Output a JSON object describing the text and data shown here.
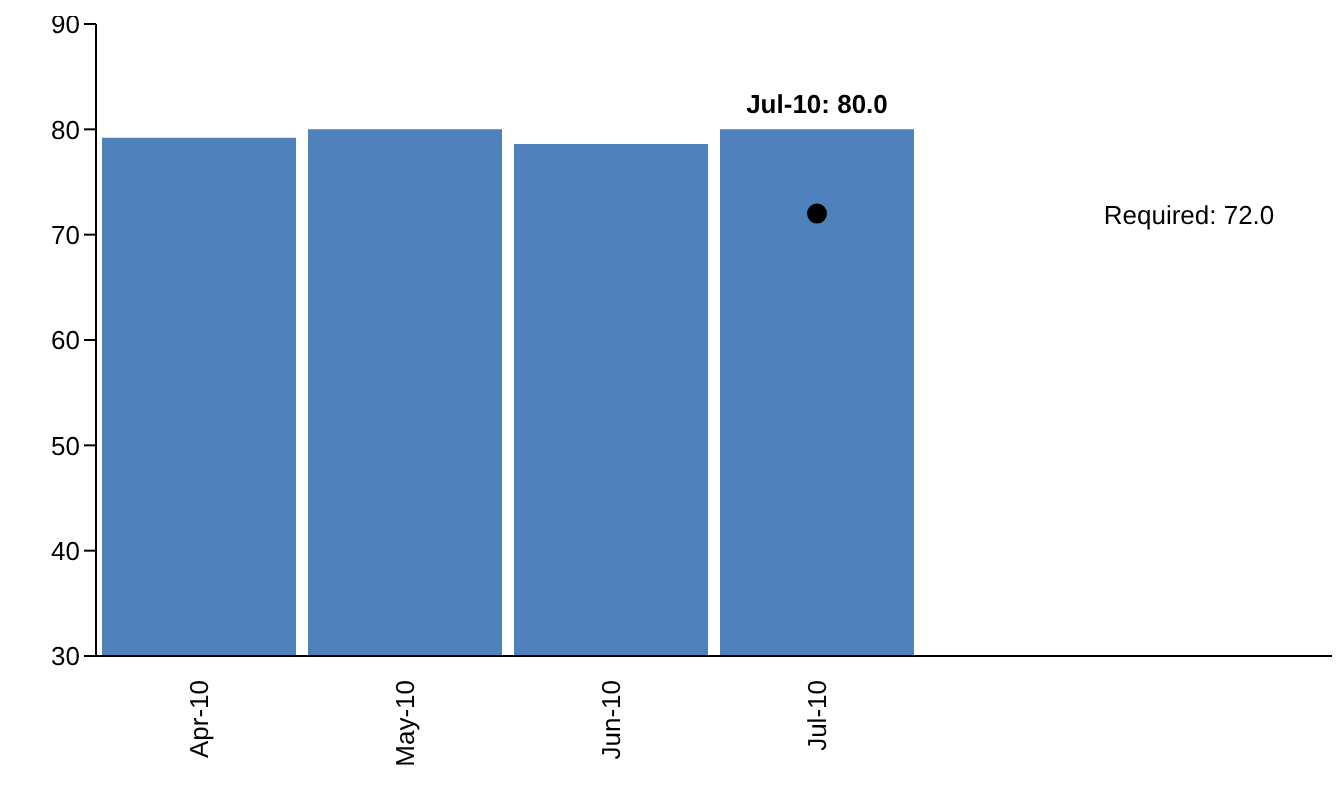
{
  "chart_data": {
    "type": "bar",
    "categories": [
      "Apr-10",
      "May-10",
      "Jun-10",
      "Jul-10",
      null,
      null
    ],
    "series": [
      {
        "color": "#4f81bd",
        "values": [
          79.2,
          80.0,
          78.6,
          80.0,
          null,
          null
        ],
        "value_labels": [
          null,
          null,
          null,
          "Jul-10: 80.0",
          null,
          null
        ]
      },
      {
        "type": "scatter",
        "color": "#000000",
        "x": [
          "Jul-10"
        ],
        "values": [
          72
        ],
        "marker": "circle"
      }
    ],
    "annotations": [
      "Required: 72.0"
    ],
    "ylim": [
      30,
      90
    ],
    "yticks": [
      30,
      40,
      50,
      60,
      70,
      80,
      90
    ]
  }
}
